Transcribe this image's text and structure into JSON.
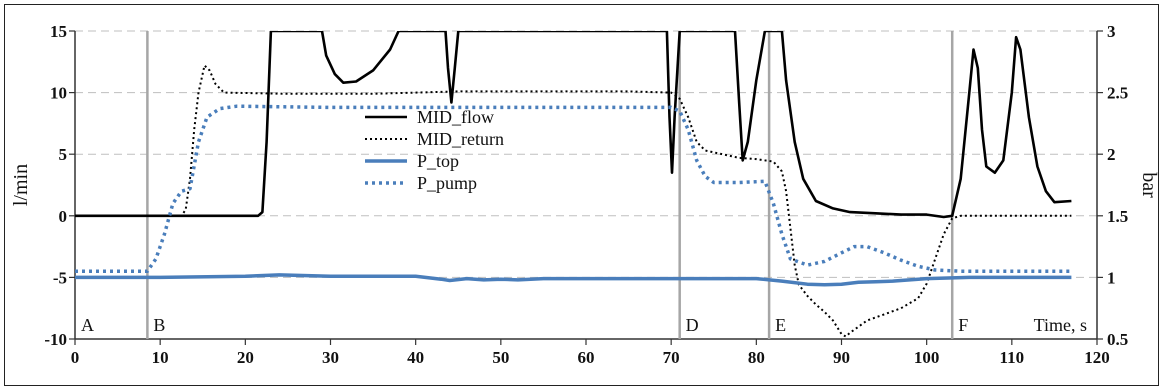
{
  "chart_data": {
    "type": "line",
    "x_label": "Time, s",
    "y_label_left": "l/min",
    "y_label_right": "bar",
    "xlim": [
      0,
      120
    ],
    "ylim_left": [
      -10,
      15
    ],
    "ylim_right": [
      0.5,
      3
    ],
    "x_ticks": [
      0,
      10,
      20,
      30,
      40,
      50,
      60,
      70,
      80,
      90,
      100,
      110,
      120
    ],
    "y_ticks_left": [
      -10,
      -5,
      0,
      5,
      10,
      15
    ],
    "y_ticks_right": [
      0.5,
      1,
      1.5,
      2,
      2.5,
      3
    ],
    "y_tick_labels_right": [
      "0.5",
      "1",
      "1.5",
      "2",
      "2.5",
      "3"
    ],
    "grid": "horizontal dashed",
    "legend_placement": "center",
    "phase_markers": [
      {
        "label": "A",
        "x": 0
      },
      {
        "label": "B",
        "x": 8.5
      },
      {
        "label": "D",
        "x": 71
      },
      {
        "label": "E",
        "x": 81.5
      },
      {
        "label": "F",
        "x": 103
      }
    ],
    "series": [
      {
        "name": "MID_flow",
        "axis": "left",
        "color": "#000000",
        "style": "solid",
        "points": [
          [
            0,
            0
          ],
          [
            21.5,
            0
          ],
          [
            22,
            0.3
          ],
          [
            22.5,
            6
          ],
          [
            23,
            15
          ],
          [
            29,
            15
          ],
          [
            29.5,
            13
          ],
          [
            30.5,
            11.5
          ],
          [
            31.5,
            10.8
          ],
          [
            33,
            10.9
          ],
          [
            35,
            11.8
          ],
          [
            37,
            13.5
          ],
          [
            38,
            15
          ],
          [
            43.5,
            15
          ],
          [
            43.8,
            12
          ],
          [
            44.2,
            9.2
          ],
          [
            44.6,
            12
          ],
          [
            45,
            15
          ],
          [
            69.5,
            15
          ],
          [
            69.8,
            8
          ],
          [
            70.1,
            3.5
          ],
          [
            70.4,
            8
          ],
          [
            71,
            15
          ],
          [
            77.5,
            15
          ],
          [
            78,
            9
          ],
          [
            78.4,
            4.5
          ],
          [
            79,
            6
          ],
          [
            80,
            11
          ],
          [
            81,
            15
          ],
          [
            83,
            15
          ],
          [
            83.5,
            11
          ],
          [
            84.5,
            6
          ],
          [
            85.5,
            3
          ],
          [
            87,
            1.2
          ],
          [
            89,
            0.6
          ],
          [
            91,
            0.3
          ],
          [
            94,
            0.2
          ],
          [
            97,
            0.1
          ],
          [
            100,
            0.1
          ],
          [
            102,
            -0.1
          ],
          [
            103,
            0
          ],
          [
            104,
            3
          ],
          [
            105,
            10
          ],
          [
            105.5,
            13.5
          ],
          [
            106,
            12
          ],
          [
            106.5,
            7
          ],
          [
            107,
            4
          ],
          [
            108,
            3.5
          ],
          [
            109,
            4.5
          ],
          [
            110,
            10
          ],
          [
            110.5,
            14.5
          ],
          [
            111,
            13.5
          ],
          [
            112,
            8
          ],
          [
            113,
            4
          ],
          [
            114,
            2
          ],
          [
            115,
            1.1
          ],
          [
            117,
            1.2
          ]
        ]
      },
      {
        "name": "MID_return",
        "axis": "left",
        "color": "#000000",
        "style": "dotted",
        "points": [
          [
            0,
            0
          ],
          [
            12.5,
            0
          ],
          [
            13,
            0.5
          ],
          [
            13.5,
            3
          ],
          [
            14,
            7
          ],
          [
            14.5,
            10
          ],
          [
            15.2,
            12.2
          ],
          [
            15.8,
            11.8
          ],
          [
            16.5,
            10.7
          ],
          [
            17.5,
            10
          ],
          [
            25,
            9.9
          ],
          [
            35,
            9.9
          ],
          [
            45,
            10.1
          ],
          [
            55,
            10.1
          ],
          [
            65,
            10.1
          ],
          [
            70,
            10
          ],
          [
            71,
            9.5
          ],
          [
            72,
            8
          ],
          [
            73,
            6
          ],
          [
            74,
            5.3
          ],
          [
            76,
            5
          ],
          [
            78,
            4.7
          ],
          [
            80,
            4.6
          ],
          [
            82,
            4.4
          ],
          [
            83,
            3.6
          ],
          [
            83.5,
            2
          ],
          [
            84,
            -1
          ],
          [
            84.5,
            -4
          ],
          [
            85,
            -5.6
          ],
          [
            86,
            -6.5
          ],
          [
            87,
            -7.2
          ],
          [
            88,
            -7.8
          ],
          [
            89,
            -8.5
          ],
          [
            90,
            -9.6
          ],
          [
            90.5,
            -9.8
          ],
          [
            91,
            -9.5
          ],
          [
            92,
            -9
          ],
          [
            93,
            -8.5
          ],
          [
            95,
            -8
          ],
          [
            97,
            -7.5
          ],
          [
            99,
            -6.7
          ],
          [
            100,
            -5.5
          ],
          [
            101,
            -3.5
          ],
          [
            102,
            -1.5
          ],
          [
            103,
            -0.2
          ],
          [
            104,
            0
          ],
          [
            117,
            0
          ]
        ]
      },
      {
        "name": "P_top",
        "axis": "right",
        "color": "#4a7ebb",
        "style": "solid",
        "points": [
          [
            0,
            1
          ],
          [
            10,
            1
          ],
          [
            20,
            1.01
          ],
          [
            24,
            1.02
          ],
          [
            30,
            1.01
          ],
          [
            40,
            1.01
          ],
          [
            43,
            0.985
          ],
          [
            44,
            0.975
          ],
          [
            46,
            0.99
          ],
          [
            48,
            0.98
          ],
          [
            50,
            0.985
          ],
          [
            52,
            0.98
          ],
          [
            55,
            0.99
          ],
          [
            60,
            0.99
          ],
          [
            65,
            0.99
          ],
          [
            70,
            0.99
          ],
          [
            75,
            0.99
          ],
          [
            80,
            0.99
          ],
          [
            83,
            0.97
          ],
          [
            86,
            0.945
          ],
          [
            88,
            0.94
          ],
          [
            90,
            0.945
          ],
          [
            92,
            0.96
          ],
          [
            94,
            0.965
          ],
          [
            96,
            0.97
          ],
          [
            98,
            0.98
          ],
          [
            100,
            0.99
          ],
          [
            105,
            1
          ],
          [
            117,
            1
          ]
        ]
      },
      {
        "name": "P_pump",
        "axis": "right",
        "color": "#4a7ebb",
        "style": "dotted",
        "points": [
          [
            0,
            1.05
          ],
          [
            8.5,
            1.05
          ],
          [
            9.5,
            1.15
          ],
          [
            10.5,
            1.35
          ],
          [
            11.5,
            1.6
          ],
          [
            12.5,
            1.7
          ],
          [
            13.5,
            1.72
          ],
          [
            14.5,
            2.1
          ],
          [
            15.5,
            2.3
          ],
          [
            17,
            2.37
          ],
          [
            19,
            2.39
          ],
          [
            30,
            2.38
          ],
          [
            40,
            2.38
          ],
          [
            50,
            2.38
          ],
          [
            60,
            2.38
          ],
          [
            65,
            2.38
          ],
          [
            70,
            2.38
          ],
          [
            71,
            2.35
          ],
          [
            72,
            2.2
          ],
          [
            73,
            1.95
          ],
          [
            74,
            1.82
          ],
          [
            75,
            1.77
          ],
          [
            78,
            1.77
          ],
          [
            81,
            1.78
          ],
          [
            82,
            1.6
          ],
          [
            83,
            1.35
          ],
          [
            84,
            1.15
          ],
          [
            86,
            1.1
          ],
          [
            88,
            1.13
          ],
          [
            90,
            1.2
          ],
          [
            91.5,
            1.25
          ],
          [
            93,
            1.25
          ],
          [
            95,
            1.2
          ],
          [
            97,
            1.14
          ],
          [
            99,
            1.09
          ],
          [
            101,
            1.06
          ],
          [
            104,
            1.05
          ],
          [
            117,
            1.05
          ]
        ]
      }
    ]
  }
}
